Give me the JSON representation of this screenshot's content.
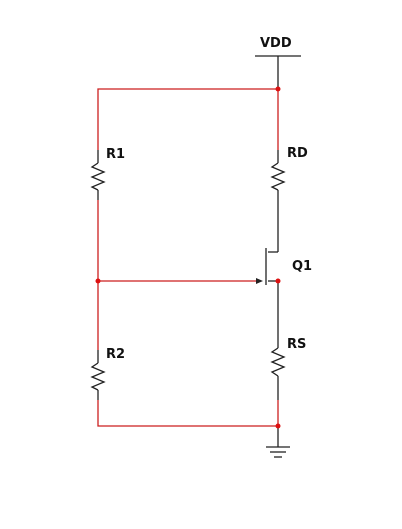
{
  "colors": {
    "wire": "#cc1f1f",
    "component": "#222222",
    "junction": "#dd1111",
    "background": "#ffffff"
  },
  "labels": {
    "supply": "VDD",
    "r1": "R1",
    "r2": "R2",
    "rd": "RD",
    "rs": "RS",
    "transistor": "Q1"
  },
  "icons": {
    "ground": "ground-icon",
    "supply": "supply-rail-icon",
    "transistor": "jfet-n-channel-icon"
  }
}
